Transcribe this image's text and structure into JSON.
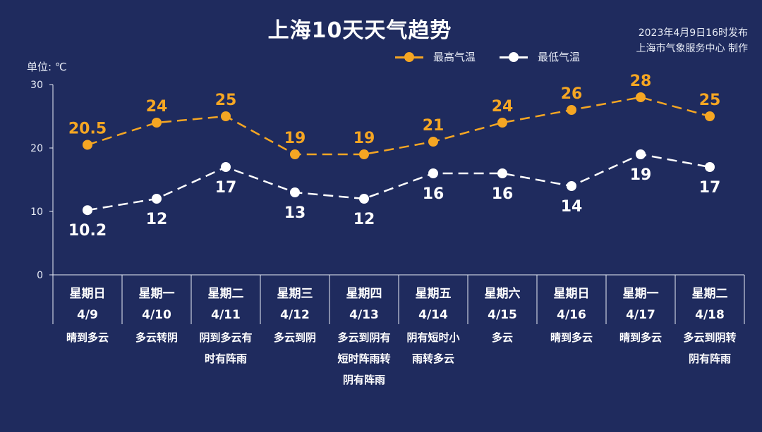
{
  "header": {
    "title": "上海10天天气趋势",
    "publish_line1": "2023年4月9日16时发布",
    "publish_line2": "上海市气象服务中心 制作",
    "unit_label": "单位: ℃"
  },
  "colors": {
    "background": "#1f2b5e",
    "high": "#f5a623",
    "low": "#ffffff",
    "axis": "#e8ecf6"
  },
  "chart_data": {
    "type": "line",
    "title": "上海10天天气趋势",
    "ylabel": "单位: ℃",
    "ylim": [
      0,
      30
    ],
    "yticks": [
      0,
      10,
      20,
      30
    ],
    "grid": false,
    "legend_position": "top-right",
    "categories": [
      "4/9",
      "4/10",
      "4/11",
      "4/12",
      "4/13",
      "4/14",
      "4/15",
      "4/16",
      "4/17",
      "4/18"
    ],
    "weekdays": [
      "星期日",
      "星期一",
      "星期二",
      "星期三",
      "星期四",
      "星期五",
      "星期六",
      "星期日",
      "星期一",
      "星期二"
    ],
    "weather": [
      [
        "晴到多云"
      ],
      [
        "多云转阴"
      ],
      [
        "阴到多云有",
        "时有阵雨"
      ],
      [
        "多云到阴"
      ],
      [
        "多云到阴有",
        "短时阵雨转",
        "阴有阵雨"
      ],
      [
        "阴有短时小",
        "雨转多云"
      ],
      [
        "多云"
      ],
      [
        "晴到多云"
      ],
      [
        "晴到多云"
      ],
      [
        "多云到阴转",
        "阴有阵雨"
      ]
    ],
    "series": [
      {
        "name": "最高气温",
        "values": [
          20.5,
          24,
          25,
          19,
          19,
          21,
          24,
          26,
          28,
          25
        ],
        "labels": [
          "20.5",
          "24",
          "25",
          "19",
          "19",
          "21",
          "24",
          "26",
          "28",
          "25"
        ]
      },
      {
        "name": "最低气温",
        "values": [
          10.2,
          12,
          17,
          13,
          12,
          16,
          16,
          14,
          19,
          17
        ],
        "labels": [
          "10.2",
          "12",
          "17",
          "13",
          "12",
          "16",
          "16",
          "14",
          "19",
          "17"
        ]
      }
    ]
  }
}
